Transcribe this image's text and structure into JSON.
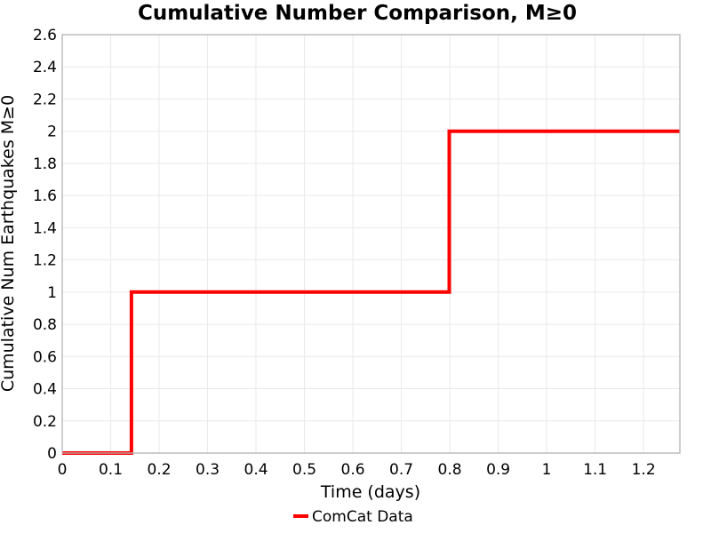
{
  "chart_data": {
    "type": "line",
    "subtype": "step",
    "title": "Cumulative Number Comparison, M≥0",
    "xlabel": "Time (days)",
    "ylabel": "Cumulative Num Earthquakes M≥0",
    "xlim": [
      0,
      1.275
    ],
    "ylim": [
      0,
      2.6
    ],
    "xticks": [
      0,
      0.1,
      0.2,
      0.3,
      0.4,
      0.5,
      0.6,
      0.7,
      0.8,
      0.9,
      1.0,
      1.1,
      1.2
    ],
    "xtick_labels": [
      "0",
      "0.1",
      "0.2",
      "0.3",
      "0.4",
      "0.5",
      "0.6",
      "0.7",
      "0.8",
      "0.9",
      "1",
      "1.1",
      "1.2"
    ],
    "yticks": [
      0,
      0.2,
      0.4,
      0.6,
      0.8,
      1.0,
      1.2,
      1.4,
      1.6,
      1.8,
      2.0,
      2.2,
      2.4,
      2.6
    ],
    "ytick_labels": [
      "0",
      "0.2",
      "0.4",
      "0.6",
      "0.8",
      "1",
      "1.2",
      "1.4",
      "1.6",
      "1.8",
      "2",
      "2.2",
      "2.4",
      "2.6"
    ],
    "grid": true,
    "grid_color": "#e9e9e9",
    "spine_color": "#b3b3b3",
    "legend_position": "bottom-center",
    "series": [
      {
        "name": "ComCat Data",
        "color": "#ff0000",
        "line_width": 4,
        "points": [
          [
            0,
            0
          ],
          [
            0.143,
            0
          ],
          [
            0.143,
            1
          ],
          [
            0.799,
            1
          ],
          [
            0.799,
            2
          ],
          [
            1.275,
            2
          ]
        ]
      }
    ],
    "event_step_times_days": [
      0.143,
      0.799
    ],
    "final_cumulative_count": 2
  }
}
